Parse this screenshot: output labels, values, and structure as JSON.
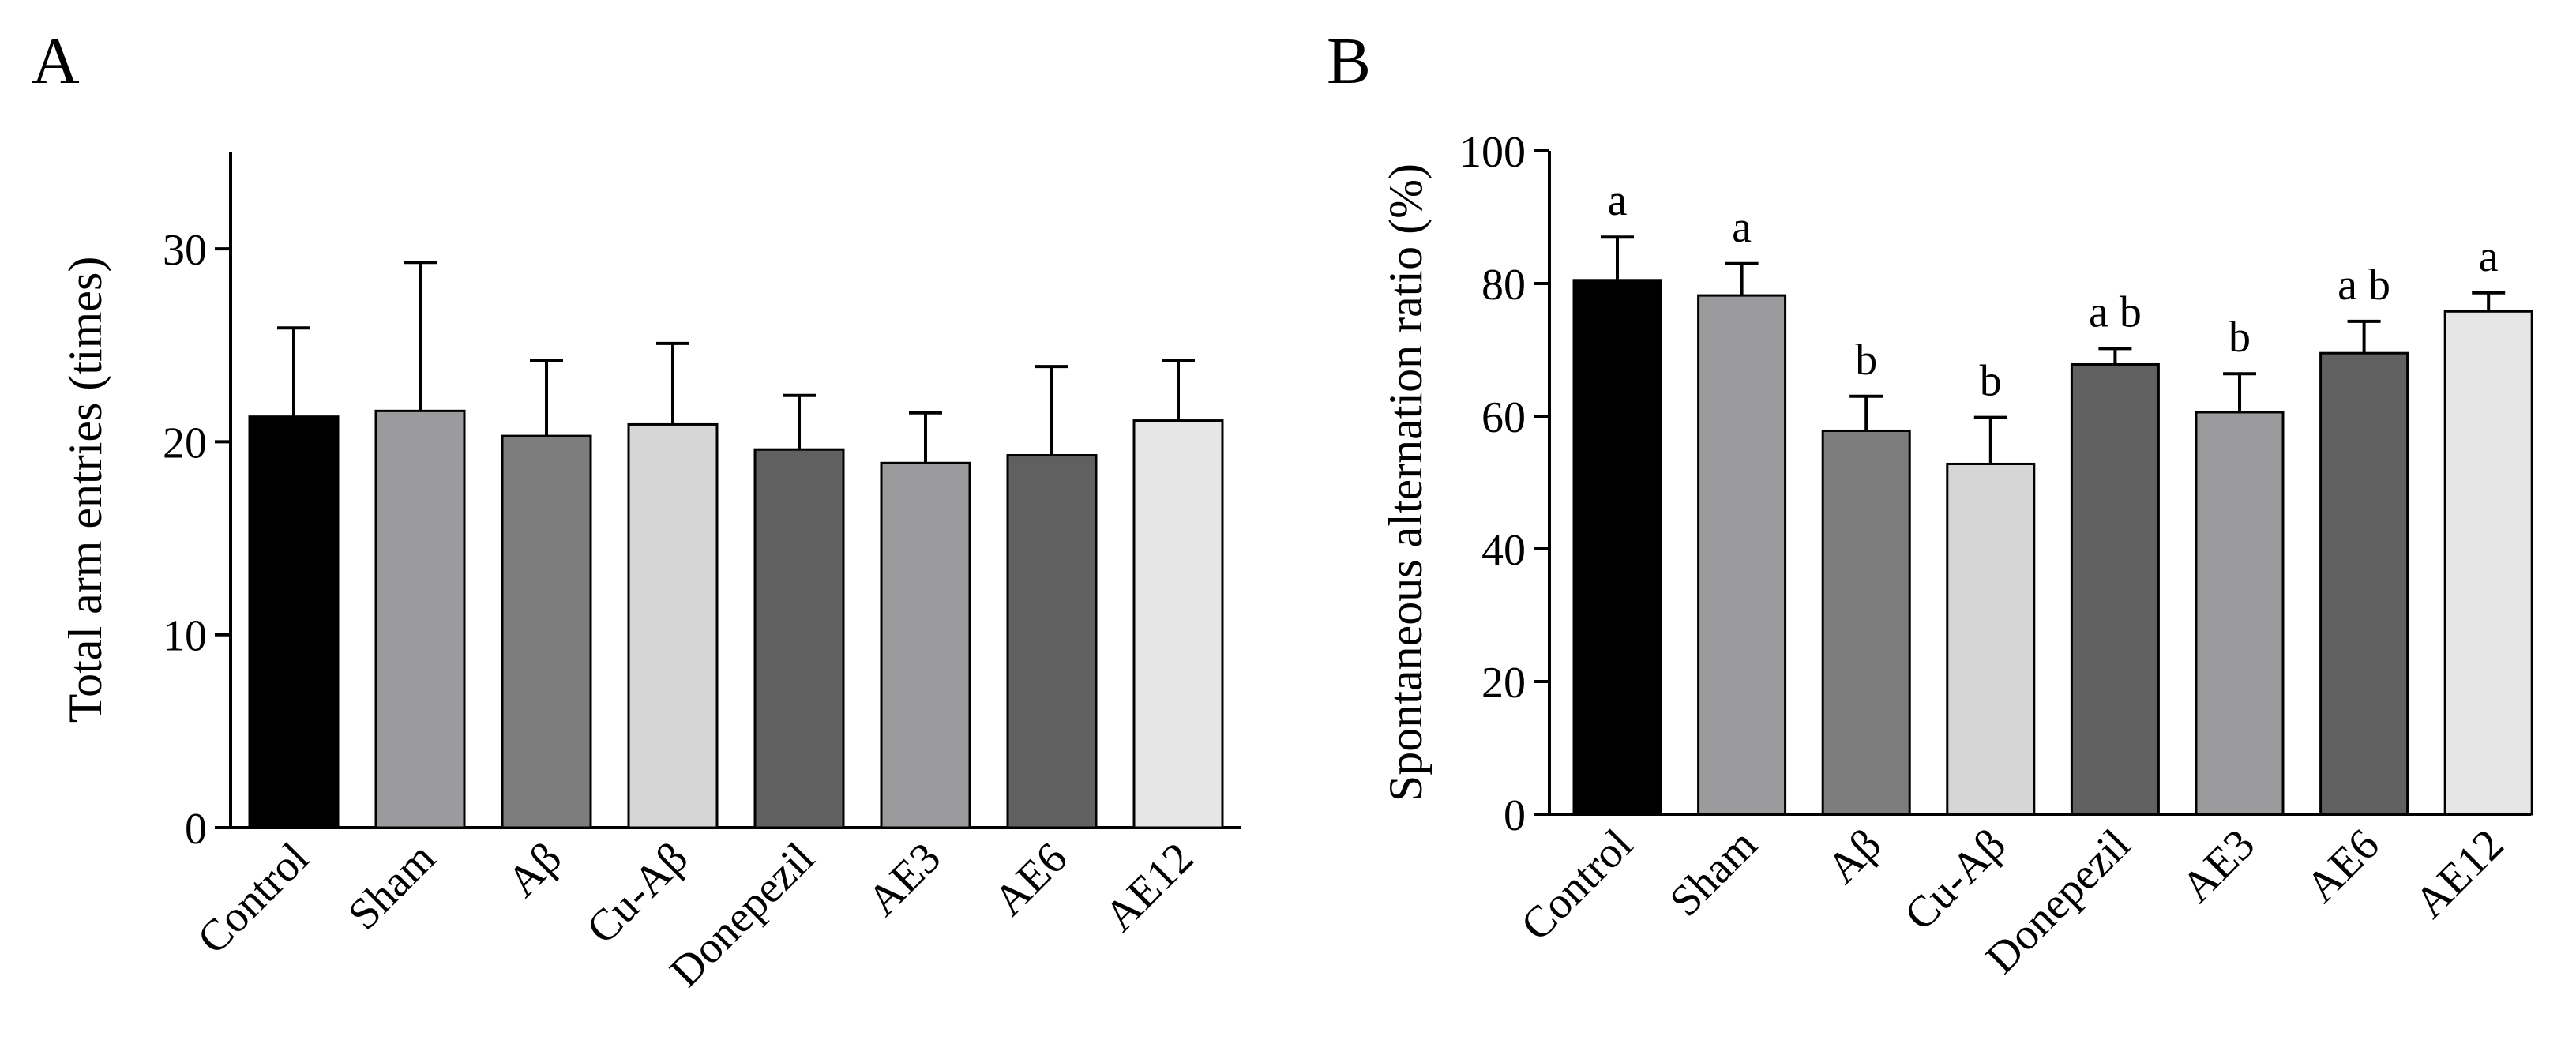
{
  "chart_data": [
    {
      "panel": "A",
      "type": "bar",
      "title": "",
      "xlabel": "",
      "ylabel": "Total arm entries (times)",
      "ylim": [
        0,
        35
      ],
      "yticks": [
        0,
        10,
        20,
        30
      ],
      "grid": false,
      "categories": [
        "Control",
        "Sham",
        "Aβ",
        "Cu-Aβ",
        "Donepezil",
        "AE3",
        "AE6",
        "AE12"
      ],
      "values": [
        21.3,
        21.6,
        20.3,
        20.9,
        19.6,
        18.9,
        19.3,
        21.1
      ],
      "errors": [
        4.6,
        7.7,
        3.9,
        4.2,
        2.8,
        2.6,
        4.6,
        3.1
      ],
      "colors": [
        "#000000",
        "#9b9b9e",
        "#7d7d7d",
        "#d6d6d6",
        "#606060",
        "#9b9b9e",
        "#606060",
        "#e6e6e6"
      ],
      "annotations": [
        "",
        "",
        "",
        "",
        "",
        "",
        "",
        ""
      ]
    },
    {
      "panel": "B",
      "type": "bar",
      "title": "",
      "xlabel": "",
      "ylabel": "Spontaneous alternation ratio (%)",
      "ylim": [
        0,
        100
      ],
      "yticks": [
        0,
        20,
        40,
        60,
        80,
        100
      ],
      "grid": false,
      "categories": [
        "Control",
        "Sham",
        "Aβ",
        "Cu-Aβ",
        "Donepezil",
        "AE3",
        "AE6",
        "AE12"
      ],
      "values": [
        80.5,
        78.2,
        57.8,
        52.8,
        67.8,
        60.6,
        69.5,
        75.8
      ],
      "errors": [
        6.5,
        4.8,
        5.2,
        7.0,
        2.4,
        5.8,
        4.8,
        2.8
      ],
      "colors": [
        "#000000",
        "#9b9b9e",
        "#7d7d7d",
        "#d6d6d6",
        "#606060",
        "#9b9b9e",
        "#606060",
        "#e6e6e6"
      ],
      "annotations": [
        "a",
        "a",
        "b",
        "b",
        "a b",
        "b",
        "a b",
        "a"
      ]
    }
  ]
}
